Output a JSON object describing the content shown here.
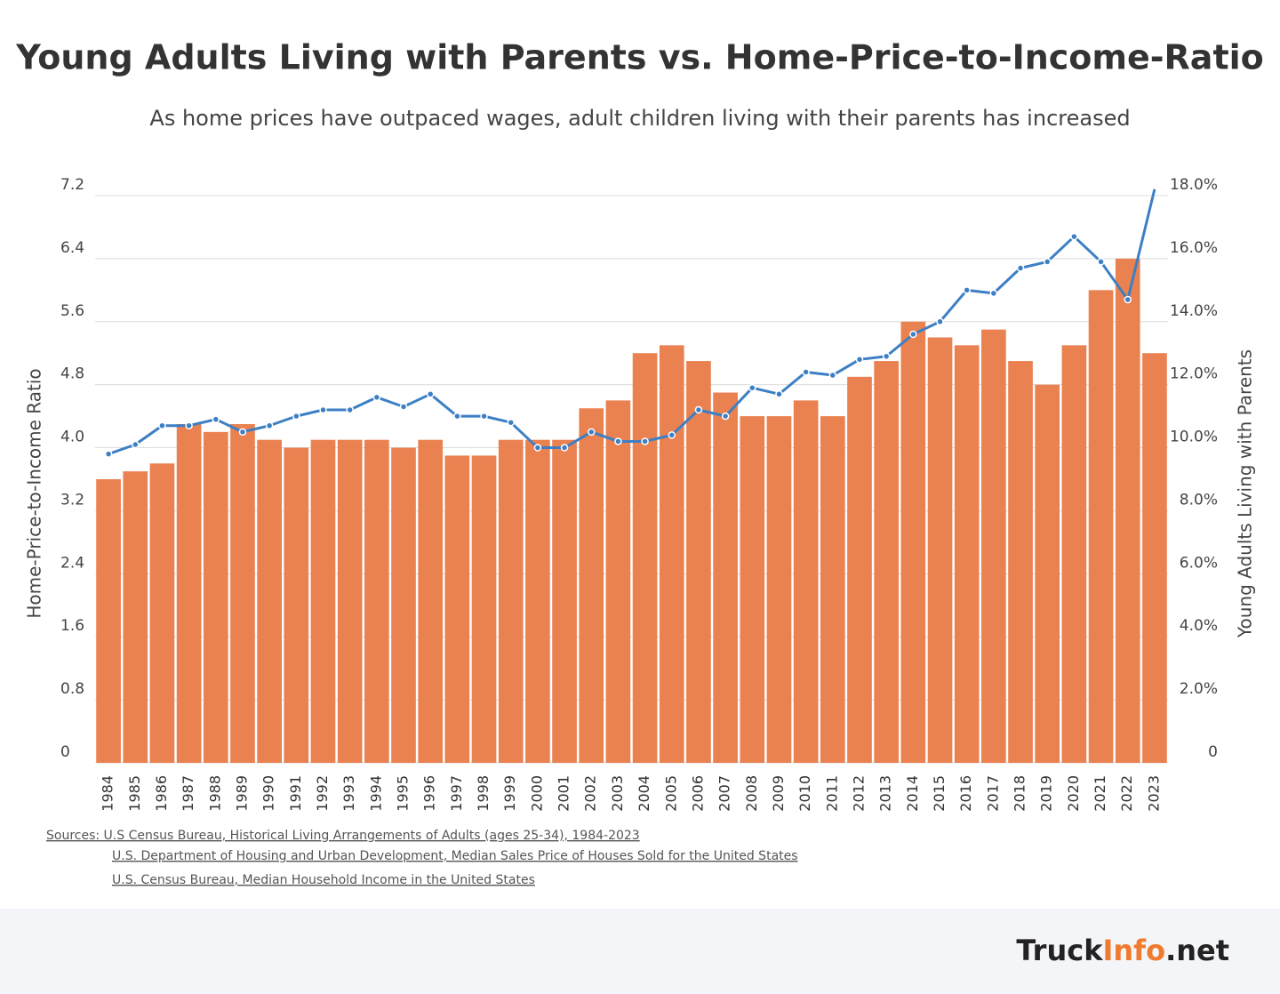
{
  "chart_data": {
    "type": "bar",
    "title": "Young Adults Living with Parents vs. Home-Price-to-Income-Ratio",
    "subtitle": "As home prices have outpaced wages, adult children living with their parents has increased",
    "ylabel": "Home-Price-to-Income Ratio",
    "y2label": "Young Adults Living with Parents",
    "categories": [
      "1984",
      "1985",
      "1986",
      "1987",
      "1988",
      "1989",
      "1990",
      "1991",
      "1992",
      "1993",
      "1994",
      "1995",
      "1996",
      "1997",
      "1998",
      "1999",
      "2000",
      "2001",
      "2002",
      "2003",
      "2004",
      "2005",
      "2006",
      "2007",
      "2008",
      "2009",
      "2010",
      "2011",
      "2012",
      "2013",
      "2014",
      "2015",
      "2016",
      "2017",
      "2018",
      "2019",
      "2020",
      "2021",
      "2022",
      "2023"
    ],
    "series": [
      {
        "type": "bar",
        "color": "#ea8150",
        "values": [
          3.6,
          3.7,
          3.8,
          4.3,
          4.2,
          4.3,
          4.1,
          4.0,
          4.1,
          4.1,
          4.1,
          4.0,
          4.1,
          3.9,
          3.9,
          4.1,
          4.1,
          4.1,
          4.5,
          4.6,
          5.2,
          5.3,
          5.1,
          4.7,
          4.4,
          4.4,
          4.6,
          4.4,
          4.9,
          5.1,
          5.6,
          5.4,
          5.3,
          5.5,
          5.1,
          4.8,
          5.3,
          6.0,
          6.4,
          5.2
        ]
      },
      {
        "type": "line",
        "axis": "y2",
        "color": "#3d7fc4",
        "values": [
          9.8,
          10.1,
          10.7,
          10.7,
          10.9,
          10.5,
          10.7,
          11.0,
          11.2,
          11.2,
          11.6,
          11.3,
          11.7,
          11.0,
          11.0,
          10.8,
          10.0,
          10.0,
          10.5,
          10.2,
          10.2,
          10.4,
          11.2,
          11.0,
          11.9,
          11.7,
          12.4,
          12.3,
          12.8,
          12.9,
          13.6,
          14.0,
          15.0,
          14.9,
          15.7,
          15.9,
          16.7,
          15.9,
          14.7,
          18.2
        ]
      }
    ],
    "ylim": [
      0,
      7.2
    ],
    "yticks": [
      0,
      0.8,
      1.6,
      2.4,
      3.2,
      {
        "value": 4,
        "label": "4.0"
      },
      4.8,
      5.6,
      6.4,
      7.2
    ],
    "y2lim": [
      0,
      18
    ],
    "y2ticks": [
      0,
      {
        "value": 2,
        "label": "2.0%"
      },
      {
        "value": 4,
        "label": "4.0%"
      },
      {
        "value": 6,
        "label": "6.0%"
      },
      {
        "value": 8,
        "label": "8.0%"
      },
      {
        "value": 10,
        "label": "10.0%"
      },
      {
        "value": 12,
        "label": "12.0%"
      },
      {
        "value": 14,
        "label": "14.0%"
      },
      {
        "value": 16,
        "label": "16.0%"
      },
      {
        "value": 18,
        "label": "18.0%"
      }
    ],
    "grid": true,
    "sources": [
      "Sources: U.S Census Bureau, Historical Living Arrangements of Adults (ages 25-34), 1984-2023",
      "U.S. Department of Housing and Urban Development, Median Sales Price of Houses Sold for the United States",
      "U.S. Census Bureau, Median Household Income in the United States"
    ],
    "brand": [
      "Truck",
      "Info",
      ".net"
    ]
  }
}
